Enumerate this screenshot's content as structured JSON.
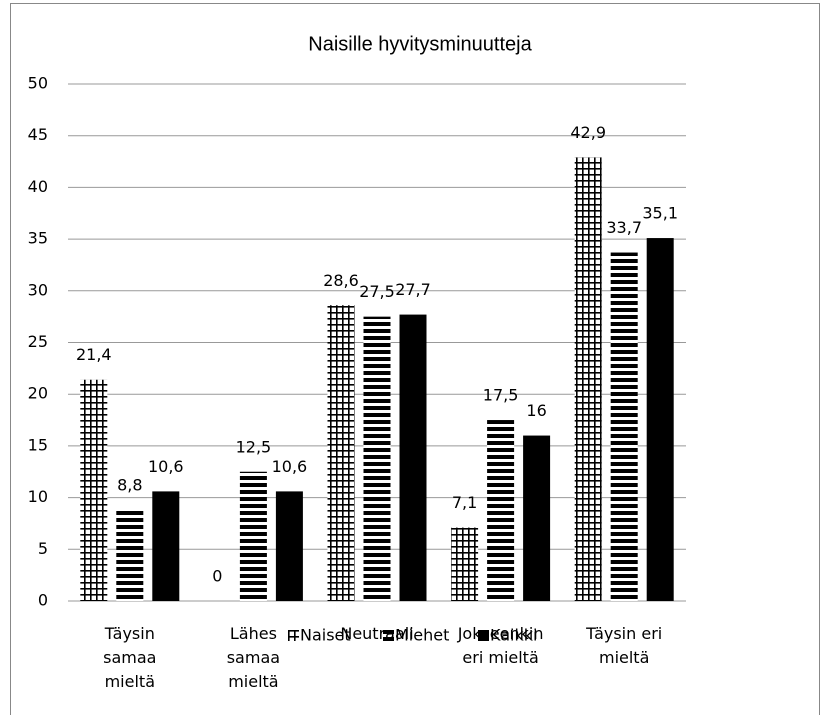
{
  "chart_data": {
    "type": "bar",
    "title": "Naisille hyvitysminuutteja",
    "categories": [
      "Täysin samaa mieltä",
      "Lähes samaa mieltä",
      "Neutraali",
      "Jokseenkin eri mieltä",
      "Täysin eri mieltä"
    ],
    "series": [
      {
        "name": "Naiset",
        "color": "#000000",
        "pattern": "grid",
        "values": [
          21.4,
          0,
          28.6,
          7.1,
          42.9
        ],
        "value_labels": [
          "21,4",
          "0",
          "28,6",
          "7,1",
          "42,9"
        ]
      },
      {
        "name": "Miehet",
        "color": "#000000",
        "pattern": "horizontal",
        "values": [
          8.8,
          12.5,
          27.5,
          17.5,
          33.7
        ],
        "value_labels": [
          "8,8",
          "12,5",
          "27,5",
          "17,5",
          "33,7"
        ]
      },
      {
        "name": "Kaikki",
        "color": "#000000",
        "pattern": "solid",
        "values": [
          10.6,
          10.6,
          27.7,
          16,
          35.1
        ],
        "value_labels": [
          "10,6",
          "10,6",
          "27,7",
          "16",
          "35,1"
        ]
      }
    ],
    "ylim": [
      0,
      50
    ],
    "yticks": [
      0,
      5,
      10,
      15,
      20,
      25,
      30,
      35,
      40,
      45,
      50
    ],
    "grid": true,
    "legend": "bottom"
  }
}
